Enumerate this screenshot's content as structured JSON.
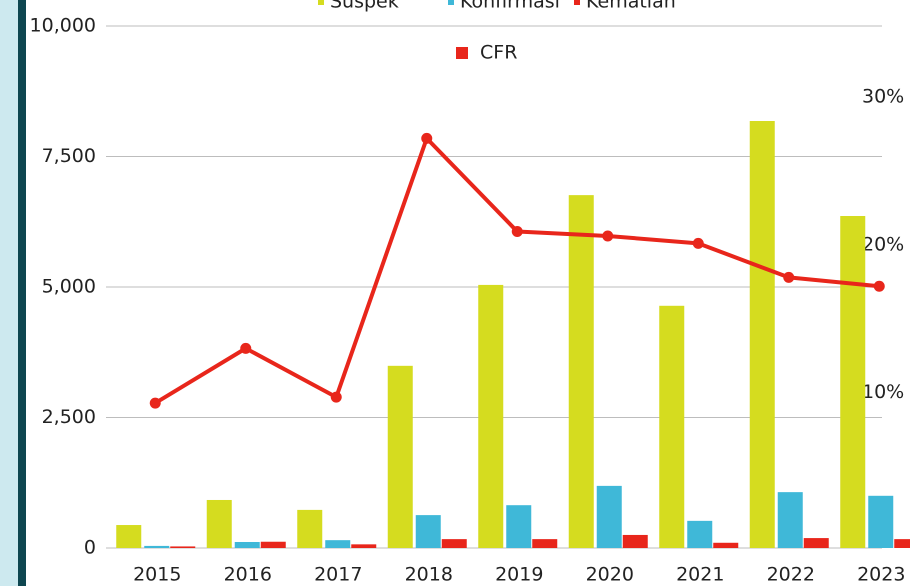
{
  "chart_data": {
    "type": "bar",
    "categories": [
      "2015",
      "2016",
      "2017",
      "2018",
      "2019",
      "2020",
      "2021",
      "2022",
      "2023"
    ],
    "series": [
      {
        "name": "Suspek",
        "color": "#d5dc1f",
        "values": [
          440,
          920,
          730,
          3490,
          5040,
          6760,
          4640,
          8180,
          6360
        ]
      },
      {
        "name": "Konfirmasi",
        "color": "#3fb8d8",
        "values": [
          40,
          115,
          150,
          630,
          820,
          1190,
          520,
          1070,
          1000
        ]
      },
      {
        "name": "Kematian",
        "color": "#e8261b",
        "values": [
          30,
          120,
          70,
          170,
          170,
          250,
          100,
          190,
          170
        ]
      },
      {
        "name": "CFR",
        "color": "#e8261b",
        "type": "line",
        "axis": "y2",
        "values": [
          9.3,
          13.0,
          9.7,
          27.2,
          20.9,
          20.6,
          20.1,
          17.8,
          17.2
        ]
      }
    ],
    "ylim": [
      0,
      10000
    ],
    "yticks": [
      0,
      {
        "value": 2500,
        "label": "2,500"
      },
      {
        "value": 5000,
        "label": "5,000"
      },
      {
        "value": 7500,
        "label": "7,500"
      },
      {
        "value": 10000,
        "label": "10,000"
      }
    ],
    "y2lim": [
      -0.5,
      34.8
    ],
    "y2ticks": [
      {
        "value": 10,
        "label": "10%"
      },
      {
        "value": 20,
        "label": "20%"
      },
      {
        "value": 30,
        "label": "30%"
      }
    ],
    "grid": true
  }
}
